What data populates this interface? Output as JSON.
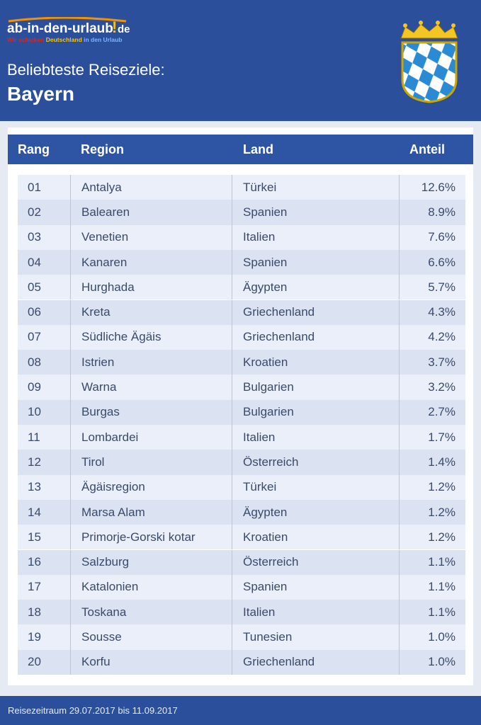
{
  "header": {
    "logo": {
      "name": "ab-in-den-urlaub",
      "mark": "!",
      "tld": "de",
      "tagline": [
        "Wir schicken",
        "Deutschland",
        "in den Urlaub"
      ]
    },
    "subtitle": "Beliebteste Reiseziele:",
    "title": "Bayern"
  },
  "table": {
    "columns": [
      "Rang",
      "Region",
      "Land",
      "Anteil"
    ],
    "rows": [
      [
        "01",
        "Antalya",
        "Türkei",
        "12.6%"
      ],
      [
        "02",
        "Balearen",
        "Spanien",
        "8.9%"
      ],
      [
        "03",
        "Venetien",
        "Italien",
        "7.6%"
      ],
      [
        "04",
        "Kanaren",
        "Spanien",
        "6.6%"
      ],
      [
        "05",
        "Hurghada",
        "Ägypten",
        "5.7%"
      ],
      [
        "06",
        "Kreta",
        "Griechenland",
        "4.3%"
      ],
      [
        "07",
        "Südliche Ägäis",
        "Griechenland",
        "4.2%"
      ],
      [
        "08",
        "Istrien",
        "Kroatien",
        "3.7%"
      ],
      [
        "09",
        "Warna",
        "Bulgarien",
        "3.2%"
      ],
      [
        "10",
        "Burgas",
        "Bulgarien",
        "2.7%"
      ],
      [
        "11",
        "Lombardei",
        "Italien",
        "1.7%"
      ],
      [
        "12",
        "Tirol",
        "Österreich",
        "1.4%"
      ],
      [
        "13",
        "Ägäisregion",
        "Türkei",
        "1.2%"
      ],
      [
        "14",
        "Marsa Alam",
        "Ägypten",
        "1.2%"
      ],
      [
        "15",
        "Primorje-Gorski kotar",
        "Kroatien",
        "1.2%"
      ],
      [
        "16",
        "Salzburg",
        "Österreich",
        "1.1%"
      ],
      [
        "17",
        "Katalonien",
        "Spanien",
        "1.1%"
      ],
      [
        "18",
        "Toskana",
        "Italien",
        "1.1%"
      ],
      [
        "19",
        "Sousse",
        "Tunesien",
        "1.0%"
      ],
      [
        "20",
        "Korfu",
        "Griechenland",
        "1.0%"
      ]
    ]
  },
  "footer": "Reisezeitraum 29.07.2017 bis 11.09.2017"
}
